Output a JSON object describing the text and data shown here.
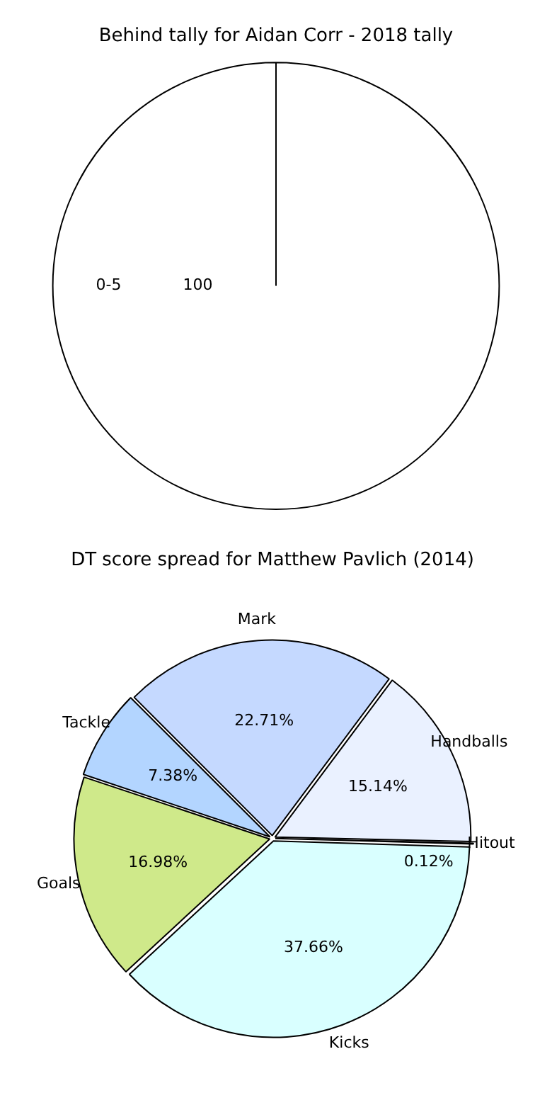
{
  "chart_data": [
    {
      "type": "pie",
      "title": "Behind tally for Aidan Corr - 2018 tally",
      "categories": [
        "0-5"
      ],
      "values": [
        100
      ],
      "colors": [
        "#ffffff"
      ],
      "value_labels": [
        "100"
      ],
      "legend": false
    },
    {
      "type": "pie",
      "title": "DT score spread for Matthew Pavlich (2014)",
      "categories": [
        "Mark",
        "Handballs",
        "Hitout",
        "Kicks",
        "Goals",
        "Tackle"
      ],
      "values": [
        22.71,
        15.14,
        0.12,
        37.66,
        16.98,
        7.38
      ],
      "colors": [
        "#c5d9ff",
        "#eaf1ff",
        "#eef4ff",
        "#d9ffff",
        "#cfe98a",
        "#b3d5ff"
      ],
      "value_labels": [
        "22.71%",
        "15.14%",
        "0.12%",
        "37.66%",
        "16.98%",
        "7.38%"
      ],
      "legend": false
    }
  ]
}
